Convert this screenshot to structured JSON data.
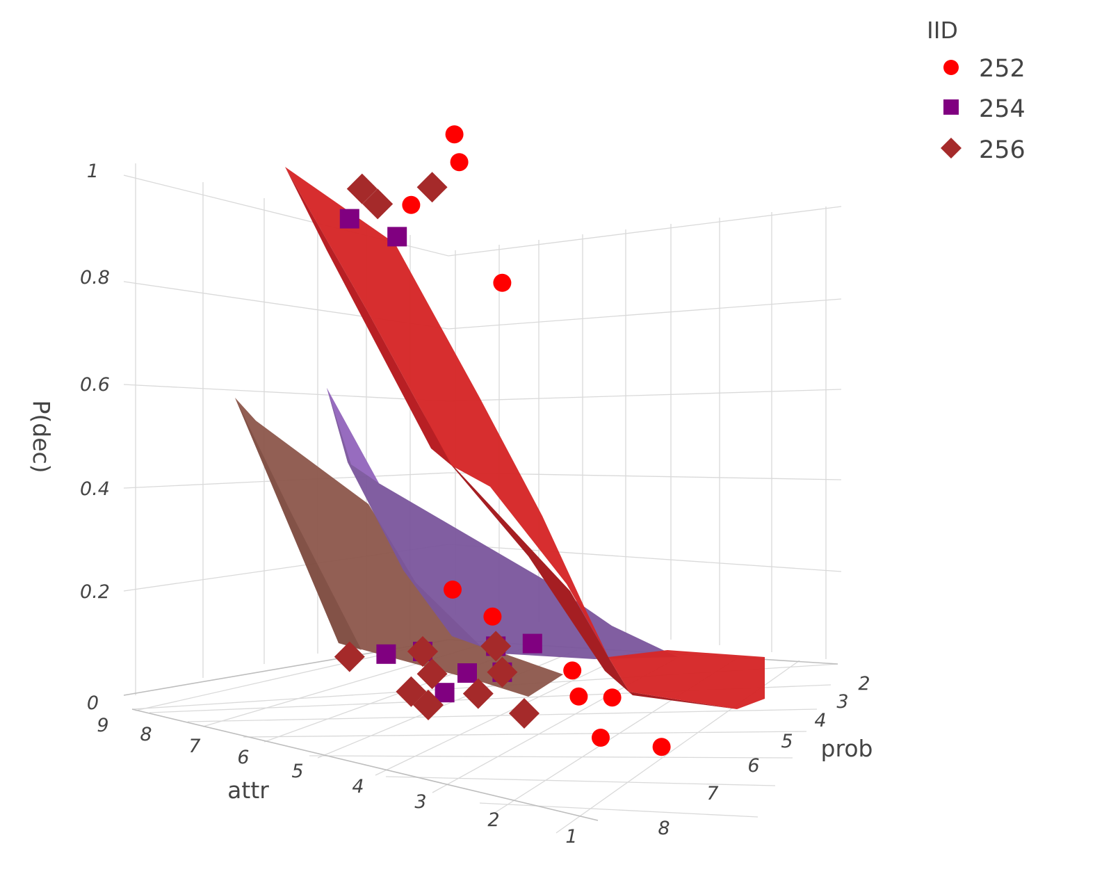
{
  "chart_data": {
    "type": "scatter",
    "title": "",
    "xlabel": "attr",
    "ylabel": "prob",
    "zlabel": "P(dec)",
    "x_ticks": [
      "9",
      "8",
      "7",
      "6",
      "5",
      "4",
      "3",
      "2",
      "1"
    ],
    "y_ticks": [
      "2",
      "3",
      "4",
      "5",
      "6",
      "7",
      "8"
    ],
    "z_ticks": [
      "0",
      "0.2",
      "0.4",
      "0.6",
      "0.8",
      "1"
    ],
    "legend": {
      "title": "IID",
      "position": "top-right"
    },
    "series": [
      {
        "name": "252",
        "marker": "circle",
        "color": "#ff0000",
        "points": [
          {
            "attr": 7,
            "prob": 6,
            "dec": 1
          },
          {
            "attr": 5,
            "prob": 5,
            "dec": 1
          },
          {
            "attr": 3,
            "prob": 4,
            "dec": 1
          },
          {
            "attr": 2,
            "prob": 3,
            "dec": 1
          },
          {
            "attr": 3,
            "prob": 5,
            "dec": 0.8
          },
          {
            "attr": 1,
            "prob": 3,
            "dec": 0
          },
          {
            "attr": 1,
            "prob": 2,
            "dec": 0
          },
          {
            "attr": 1,
            "prob": 4,
            "dec": 0
          },
          {
            "attr": 2,
            "prob": 6,
            "dec": 0
          },
          {
            "attr": 2,
            "prob": 8,
            "dec": 0
          },
          {
            "attr": 4,
            "prob": 8,
            "dec": 0
          },
          {
            "attr": 1,
            "prob": 5,
            "dec": 0
          },
          {
            "attr": 1,
            "prob": 6,
            "dec": 0
          }
        ]
      },
      {
        "name": "254",
        "marker": "square",
        "color": "#800080",
        "points": [
          {
            "attr": 6,
            "prob": 5,
            "dec": 0.9
          },
          {
            "attr": 6,
            "prob": 4,
            "dec": 0.9
          },
          {
            "attr": 5,
            "prob": 4,
            "dec": 0
          },
          {
            "attr": 4,
            "prob": 4,
            "dec": 0
          },
          {
            "attr": 3,
            "prob": 5,
            "dec": 0
          },
          {
            "attr": 2,
            "prob": 4,
            "dec": 0
          },
          {
            "attr": 6,
            "prob": 6,
            "dec": 0
          },
          {
            "attr": 4,
            "prob": 5,
            "dec": 0
          },
          {
            "attr": 1,
            "prob": 4,
            "dec": 0
          }
        ]
      },
      {
        "name": "256",
        "marker": "diamond",
        "color": "#a52a2a",
        "points": [
          {
            "attr": 8,
            "prob": 6,
            "dec": 1
          },
          {
            "attr": 7,
            "prob": 5,
            "dec": 1
          },
          {
            "attr": 5,
            "prob": 5,
            "dec": 1
          },
          {
            "attr": 8,
            "prob": 7,
            "dec": 0
          },
          {
            "attr": 7,
            "prob": 6,
            "dec": 0
          },
          {
            "attr": 6,
            "prob": 4,
            "dec": 0
          },
          {
            "attr": 5,
            "prob": 5,
            "dec": 0
          },
          {
            "attr": 4,
            "prob": 4,
            "dec": 0
          },
          {
            "attr": 5,
            "prob": 6,
            "dec": 0
          },
          {
            "attr": 4,
            "prob": 4,
            "dec": 0
          },
          {
            "attr": 3,
            "prob": 5,
            "dec": 0
          },
          {
            "attr": 2,
            "prob": 4,
            "dec": 0
          },
          {
            "attr": 5,
            "prob": 7,
            "dec": 0
          }
        ]
      }
    ],
    "surfaces": [
      {
        "name": "252",
        "color": "#d62728"
      },
      {
        "name": "254",
        "color": "#7a559c"
      },
      {
        "name": "256",
        "color": "#8c564b"
      }
    ]
  }
}
